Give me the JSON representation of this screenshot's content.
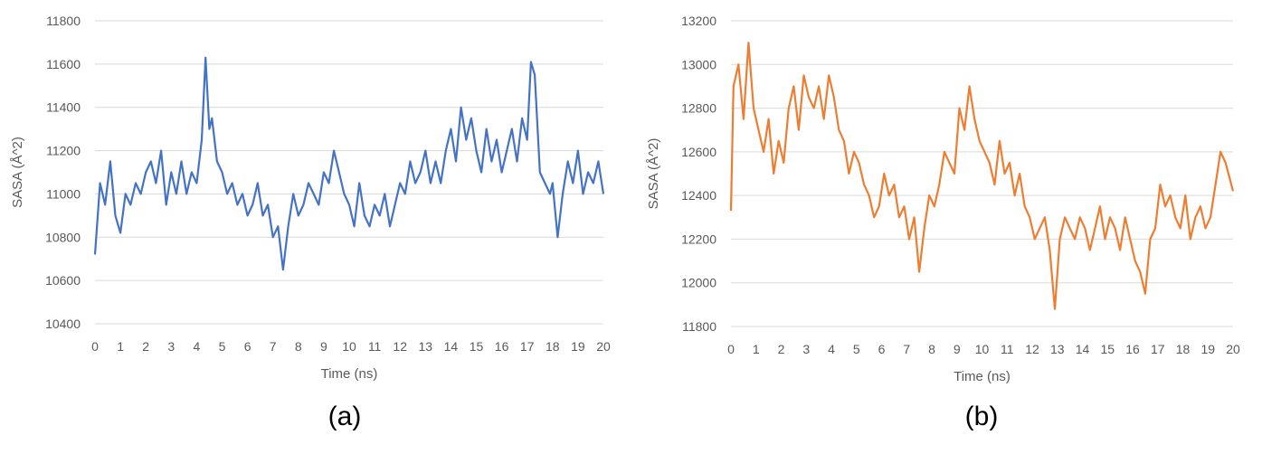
{
  "chart_data": [
    {
      "type": "line",
      "panel_label": "(a)",
      "xlabel": "Time (ns)",
      "ylabel": "SASA (Å^2)",
      "xlim": [
        0,
        20
      ],
      "ylim": [
        10400,
        11800
      ],
      "x_ticks": [
        "0",
        "1",
        "2",
        "3",
        "4",
        "5",
        "6",
        "7",
        "8",
        "9",
        "10",
        "11",
        "12",
        "13",
        "14",
        "15",
        "16",
        "17",
        "18",
        "19",
        "20"
      ],
      "y_ticks": [
        "10400",
        "10600",
        "10800",
        "11000",
        "11200",
        "11400",
        "11600",
        "11800"
      ],
      "grid": "horizontal",
      "color": "#4472c4",
      "series": [
        {
          "x": [
            0,
            0.2,
            0.4,
            0.6,
            0.8,
            1,
            1.2,
            1.4,
            1.6,
            1.8,
            2,
            2.2,
            2.4,
            2.6,
            2.8,
            3,
            3.2,
            3.4,
            3.6,
            3.8,
            4,
            4.2,
            4.35,
            4.5,
            4.6,
            4.8,
            5,
            5.2,
            5.4,
            5.6,
            5.8,
            6,
            6.2,
            6.4,
            6.6,
            6.8,
            7,
            7.2,
            7.4,
            7.6,
            7.8,
            8,
            8.2,
            8.4,
            8.6,
            8.8,
            9,
            9.2,
            9.4,
            9.6,
            9.8,
            10,
            10.2,
            10.4,
            10.6,
            10.8,
            11,
            11.2,
            11.4,
            11.6,
            11.8,
            12,
            12.2,
            12.4,
            12.6,
            12.8,
            13,
            13.2,
            13.4,
            13.6,
            13.8,
            14,
            14.2,
            14.4,
            14.6,
            14.8,
            15,
            15.2,
            15.4,
            15.6,
            15.8,
            16,
            16.2,
            16.4,
            16.6,
            16.8,
            17,
            17.15,
            17.3,
            17.5,
            17.7,
            17.9,
            18,
            18.2,
            18.4,
            18.6,
            18.8,
            19,
            19.2,
            19.4,
            19.6,
            19.8,
            20
          ],
          "y": [
            10720,
            11050,
            10950,
            11150,
            10900,
            10820,
            11000,
            10950,
            11050,
            11000,
            11100,
            11150,
            11050,
            11200,
            10950,
            11100,
            11000,
            11150,
            11000,
            11100,
            11050,
            11250,
            11630,
            11300,
            11350,
            11150,
            11100,
            11000,
            11050,
            10950,
            11000,
            10900,
            10950,
            11050,
            10900,
            10950,
            10800,
            10850,
            10650,
            10850,
            11000,
            10900,
            10950,
            11050,
            11000,
            10950,
            11100,
            11050,
            11200,
            11100,
            11000,
            10950,
            10850,
            11050,
            10900,
            10850,
            10950,
            10900,
            11000,
            10850,
            10950,
            11050,
            11000,
            11150,
            11050,
            11100,
            11200,
            11050,
            11150,
            11050,
            11200,
            11300,
            11150,
            11400,
            11250,
            11350,
            11200,
            11100,
            11300,
            11150,
            11250,
            11100,
            11200,
            11300,
            11150,
            11350,
            11250,
            11610,
            11550,
            11100,
            11050,
            11000,
            11050,
            10800,
            11000,
            11150,
            11050,
            11200,
            11000,
            11100,
            11050,
            11150,
            11000
          ]
        }
      ]
    },
    {
      "type": "line",
      "panel_label": "(b)",
      "xlabel": "Time (ns)",
      "ylabel": "SASA (Å^2)",
      "xlim": [
        0,
        20
      ],
      "ylim": [
        11800,
        13200
      ],
      "x_ticks": [
        "0",
        "1",
        "2",
        "3",
        "4",
        "5",
        "6",
        "7",
        "8",
        "9",
        "10",
        "11",
        "12",
        "13",
        "14",
        "15",
        "16",
        "17",
        "18",
        "19",
        "20"
      ],
      "y_ticks": [
        "11800",
        "12000",
        "12200",
        "12400",
        "12600",
        "12800",
        "13000",
        "13200"
      ],
      "grid": "horizontal",
      "color": "#ed7d31",
      "series": [
        {
          "x": [
            0,
            0.1,
            0.3,
            0.5,
            0.7,
            0.9,
            1.1,
            1.3,
            1.5,
            1.7,
            1.9,
            2.1,
            2.3,
            2.5,
            2.7,
            2.9,
            3.1,
            3.3,
            3.5,
            3.7,
            3.9,
            4.1,
            4.3,
            4.5,
            4.7,
            4.9,
            5.1,
            5.3,
            5.5,
            5.7,
            5.9,
            6.1,
            6.3,
            6.5,
            6.7,
            6.9,
            7.1,
            7.3,
            7.5,
            7.7,
            7.9,
            8.1,
            8.3,
            8.5,
            8.7,
            8.9,
            9.1,
            9.3,
            9.5,
            9.7,
            9.9,
            10.1,
            10.3,
            10.5,
            10.7,
            10.9,
            11.1,
            11.3,
            11.5,
            11.7,
            11.9,
            12.1,
            12.3,
            12.5,
            12.7,
            12.9,
            13.1,
            13.3,
            13.5,
            13.7,
            13.9,
            14.1,
            14.3,
            14.5,
            14.7,
            14.9,
            15.1,
            15.3,
            15.5,
            15.7,
            15.9,
            16.1,
            16.3,
            16.5,
            16.7,
            16.9,
            17.1,
            17.3,
            17.5,
            17.7,
            17.9,
            18.1,
            18.3,
            18.5,
            18.7,
            18.9,
            19.1,
            19.3,
            19.5,
            19.7,
            20
          ],
          "y": [
            12330,
            12900,
            13000,
            12750,
            13100,
            12800,
            12700,
            12600,
            12750,
            12500,
            12650,
            12550,
            12800,
            12900,
            12700,
            12950,
            12850,
            12800,
            12900,
            12750,
            12950,
            12850,
            12700,
            12650,
            12500,
            12600,
            12550,
            12450,
            12400,
            12300,
            12350,
            12500,
            12400,
            12450,
            12300,
            12350,
            12200,
            12300,
            12050,
            12250,
            12400,
            12350,
            12450,
            12600,
            12550,
            12500,
            12800,
            12700,
            12900,
            12750,
            12650,
            12600,
            12550,
            12450,
            12650,
            12500,
            12550,
            12400,
            12500,
            12350,
            12300,
            12200,
            12250,
            12300,
            12150,
            11880,
            12200,
            12300,
            12250,
            12200,
            12300,
            12250,
            12150,
            12250,
            12350,
            12200,
            12300,
            12250,
            12150,
            12300,
            12200,
            12100,
            12050,
            11950,
            12200,
            12250,
            12450,
            12350,
            12400,
            12300,
            12250,
            12400,
            12200,
            12300,
            12350,
            12250,
            12300,
            12450,
            12600,
            12550,
            12420
          ]
        }
      ]
    }
  ]
}
